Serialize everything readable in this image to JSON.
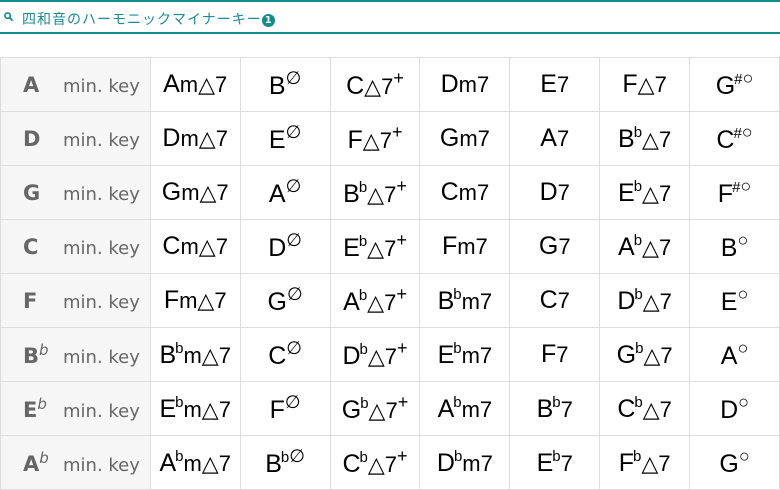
{
  "header": {
    "title": "四和音のハーモニックマイナーキー",
    "badge": "1",
    "icon": "search-icon",
    "accent": "#138a8c"
  },
  "key_suffix": "min. key",
  "rows": [
    {
      "key": "A",
      "acc": "",
      "chords": [
        [
          "A",
          "",
          "m△7",
          ""
        ],
        [
          "B",
          "",
          "",
          "∅"
        ],
        [
          "C",
          "",
          "△7",
          "+"
        ],
        [
          "D",
          "",
          "m7",
          ""
        ],
        [
          "E",
          "",
          "7",
          ""
        ],
        [
          "F",
          "",
          "△7",
          ""
        ],
        [
          "G",
          "#",
          "",
          "○"
        ]
      ]
    },
    {
      "key": "D",
      "acc": "",
      "chords": [
        [
          "D",
          "",
          "m△7",
          ""
        ],
        [
          "E",
          "",
          "",
          "∅"
        ],
        [
          "F",
          "",
          "△7",
          "+"
        ],
        [
          "G",
          "",
          "m7",
          ""
        ],
        [
          "A",
          "",
          "7",
          ""
        ],
        [
          "B",
          "b",
          "△7",
          ""
        ],
        [
          "C",
          "#",
          "",
          "○"
        ]
      ]
    },
    {
      "key": "G",
      "acc": "",
      "chords": [
        [
          "G",
          "",
          "m△7",
          ""
        ],
        [
          "A",
          "",
          "",
          "∅"
        ],
        [
          "B",
          "b",
          "△7",
          "+"
        ],
        [
          "C",
          "",
          "m7",
          ""
        ],
        [
          "D",
          "",
          "7",
          ""
        ],
        [
          "E",
          "b",
          "△7",
          ""
        ],
        [
          "F",
          "#",
          "",
          "○"
        ]
      ]
    },
    {
      "key": "C",
      "acc": "",
      "chords": [
        [
          "C",
          "",
          "m△7",
          ""
        ],
        [
          "D",
          "",
          "",
          "∅"
        ],
        [
          "E",
          "b",
          "△7",
          "+"
        ],
        [
          "F",
          "",
          "m7",
          ""
        ],
        [
          "G",
          "",
          "7",
          ""
        ],
        [
          "A",
          "b",
          "△7",
          ""
        ],
        [
          "B",
          "",
          "",
          "○"
        ]
      ]
    },
    {
      "key": "F",
      "acc": "",
      "chords": [
        [
          "F",
          "",
          "m△7",
          ""
        ],
        [
          "G",
          "",
          "",
          "∅"
        ],
        [
          "A",
          "b",
          "△7",
          "+"
        ],
        [
          "B",
          "b",
          "m7",
          ""
        ],
        [
          "C",
          "",
          "7",
          ""
        ],
        [
          "D",
          "b",
          "△7",
          ""
        ],
        [
          "E",
          "",
          "",
          "○"
        ]
      ]
    },
    {
      "key": "B",
      "acc": "b",
      "chords": [
        [
          "B",
          "b",
          "m△7",
          ""
        ],
        [
          "C",
          "",
          "",
          "∅"
        ],
        [
          "D",
          "b",
          "△7",
          "+"
        ],
        [
          "E",
          "b",
          "m7",
          ""
        ],
        [
          "F",
          "",
          "7",
          ""
        ],
        [
          "G",
          "b",
          "△7",
          ""
        ],
        [
          "A",
          "",
          "",
          "○"
        ]
      ]
    },
    {
      "key": "E",
      "acc": "b",
      "chords": [
        [
          "E",
          "b",
          "m△7",
          ""
        ],
        [
          "F",
          "",
          "",
          "∅"
        ],
        [
          "G",
          "b",
          "△7",
          "+"
        ],
        [
          "A",
          "b",
          "m7",
          ""
        ],
        [
          "B",
          "b",
          "7",
          ""
        ],
        [
          "C",
          "b",
          "△7",
          ""
        ],
        [
          "D",
          "",
          "",
          "○"
        ]
      ]
    },
    {
      "key": "A",
      "acc": "b",
      "chords": [
        [
          "A",
          "b",
          "m△7",
          ""
        ],
        [
          "B",
          "b",
          "",
          "∅"
        ],
        [
          "C",
          "b",
          "△7",
          "+"
        ],
        [
          "D",
          "b",
          "m7",
          ""
        ],
        [
          "E",
          "b",
          "7",
          ""
        ],
        [
          "F",
          "b",
          "△7",
          ""
        ],
        [
          "G",
          "",
          "",
          "○"
        ]
      ]
    }
  ]
}
